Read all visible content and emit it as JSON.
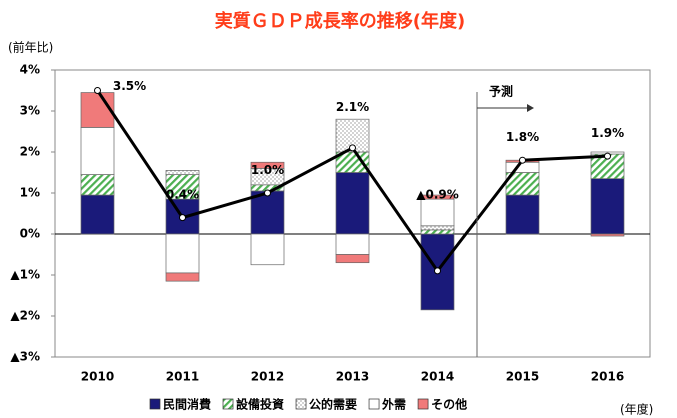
{
  "chart_data": {
    "type": "stacked-bar-line",
    "title": "実質ＧＤＰ成長率の推移(年度)",
    "y_axis_label": "(前年比)",
    "x_axis_label": "(年度)",
    "annotation": "予測",
    "categories": [
      "2010",
      "2011",
      "2012",
      "2013",
      "2014",
      "2015",
      "2016"
    ],
    "series": [
      {
        "name": "民間消費",
        "color": "#1a1a7a",
        "pattern": "solid",
        "values": [
          0.95,
          0.85,
          1.05,
          1.5,
          -1.85,
          0.95,
          1.35
        ]
      },
      {
        "name": "設備投資",
        "color": "#4caf50",
        "pattern": "hatch",
        "values": [
          0.5,
          0.6,
          0.15,
          0.5,
          0.1,
          0.55,
          0.6
        ]
      },
      {
        "name": "公的需要",
        "color": "#888888",
        "pattern": "dots",
        "values": [
          0,
          0.1,
          0.4,
          0.8,
          0.1,
          0,
          0
        ]
      },
      {
        "name": "外需",
        "color": "#ffffff",
        "pattern": "solid",
        "values": [
          1.15,
          -0.95,
          -0.75,
          -0.5,
          0.65,
          0.25,
          0.05
        ]
      },
      {
        "name": "その他",
        "color": "#f07a7a",
        "pattern": "solid",
        "values": [
          0.85,
          -0.2,
          0.15,
          -0.2,
          0.1,
          0.05,
          -0.05
        ]
      }
    ],
    "line": {
      "color": "#000000",
      "values": [
        3.5,
        0.4,
        1.0,
        2.1,
        -0.9,
        1.8,
        1.9
      ],
      "value_labels": [
        "3.5%",
        "0.4%",
        "1.0%",
        "2.1%",
        "▲0.9%",
        "1.8%",
        "1.9%"
      ]
    },
    "ylim": [
      -3,
      4
    ],
    "yticks": [
      {
        "value": -3,
        "label": "▲3%"
      },
      {
        "value": -2,
        "label": "▲2%"
      },
      {
        "value": -1,
        "label": "▲1%"
      },
      {
        "value": 0,
        "label": "0%"
      },
      {
        "value": 1,
        "label": "1%"
      },
      {
        "value": 2,
        "label": "2%"
      },
      {
        "value": 3,
        "label": "3%"
      },
      {
        "value": 4,
        "label": "4%"
      }
    ],
    "grid": false
  }
}
